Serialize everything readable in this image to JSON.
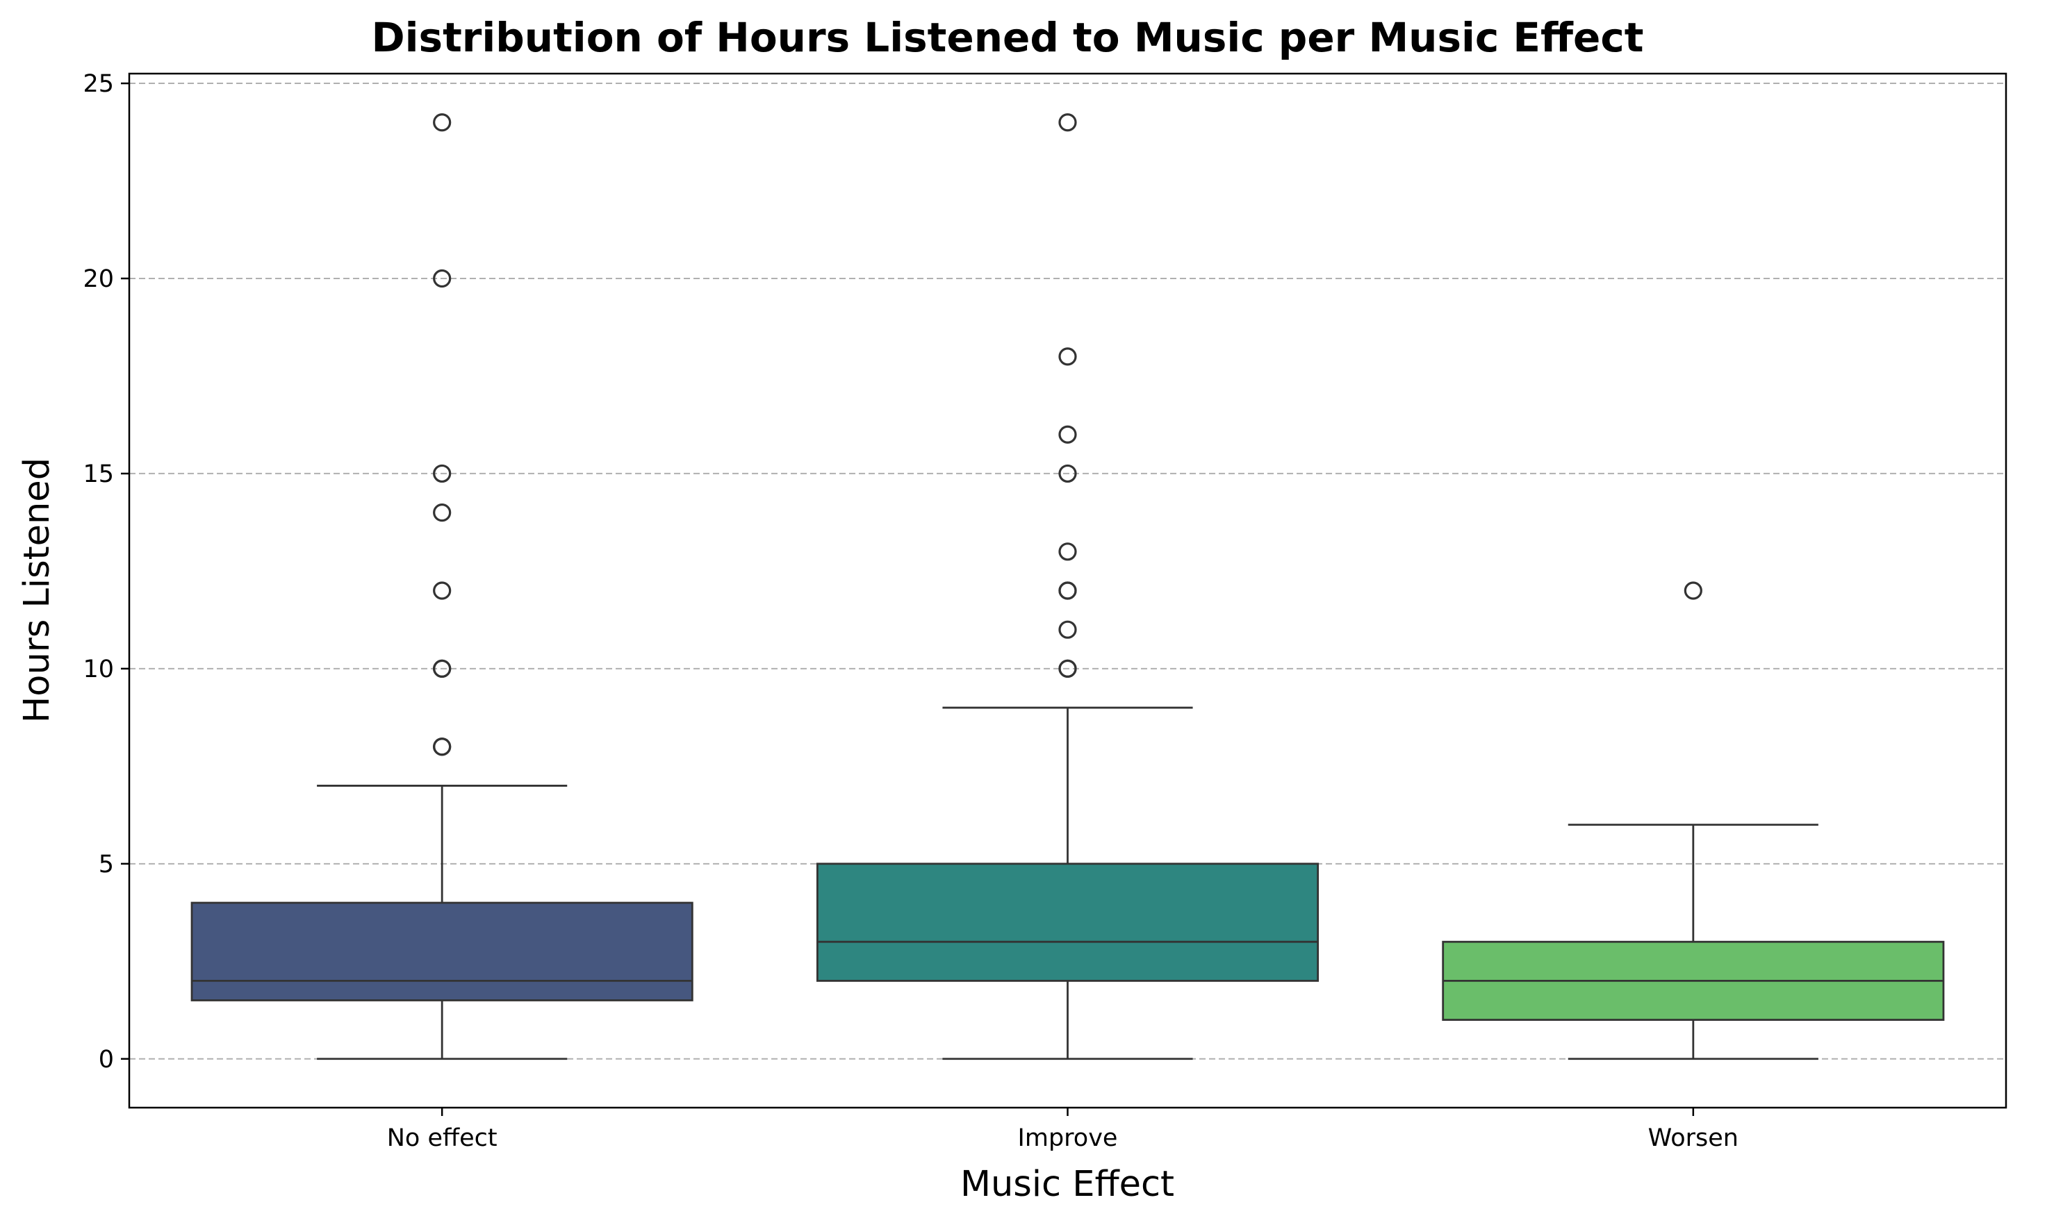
{
  "chart_data": {
    "type": "box",
    "title": "Distribution of Hours Listened to Music per Music Effect",
    "xlabel": "Music Effect",
    "ylabel": "Hours Listened",
    "ylim": [
      -1.25,
      25.25
    ],
    "yticks": [
      "0",
      "5",
      "10",
      "15",
      "20",
      "25"
    ],
    "grid": "y-dashed",
    "categories": [
      "No effect",
      "Improve",
      "Worsen"
    ],
    "boxes": [
      {
        "name": "No effect",
        "color": "#46577f",
        "whisker_low": 0,
        "q1": 1.5,
        "median": 2,
        "q3": 4,
        "whisker_high": 7,
        "outliers": [
          8,
          8,
          10,
          10,
          12,
          14,
          15,
          20,
          24
        ]
      },
      {
        "name": "Improve",
        "color": "#2e8680",
        "whisker_low": 0,
        "q1": 2,
        "median": 3,
        "q3": 5,
        "whisker_high": 9,
        "outliers": [
          10,
          10,
          11,
          12,
          12,
          13,
          15,
          16,
          18,
          24
        ]
      },
      {
        "name": "Worsen",
        "color": "#6abe6a",
        "whisker_low": 0,
        "q1": 1,
        "median": 2,
        "q3": 3,
        "whisker_high": 6,
        "outliers": [
          12
        ]
      }
    ]
  }
}
